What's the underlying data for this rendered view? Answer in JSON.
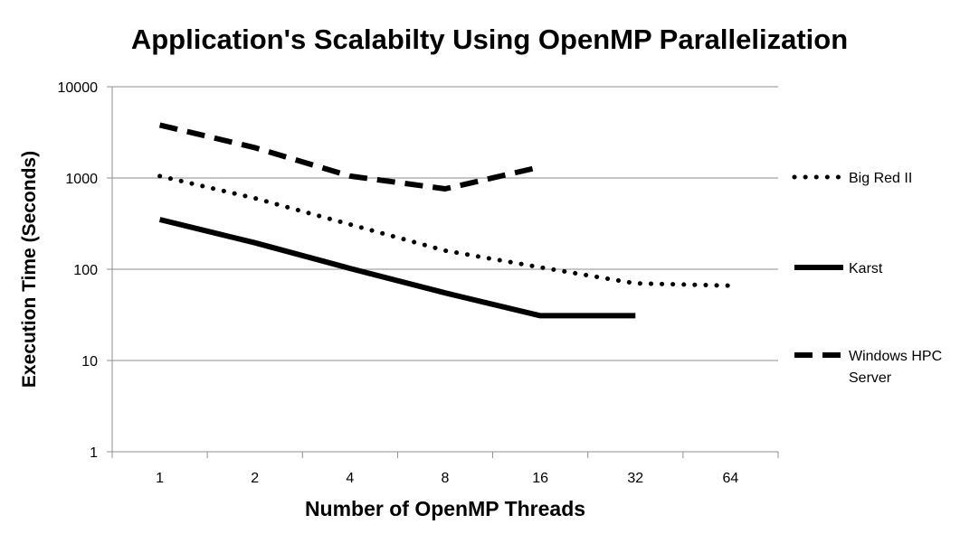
{
  "chart_data": {
    "type": "line",
    "title": "Application's Scalabilty Using OpenMP Parallelization",
    "xlabel": "Number of OpenMP Threads",
    "ylabel": "Execution Time (Seconds)",
    "categories": [
      "1",
      "2",
      "4",
      "8",
      "16",
      "32",
      "64"
    ],
    "y_scale": "log",
    "ylim": [
      1,
      10000
    ],
    "y_ticks": [
      "1",
      "10",
      "100",
      "1000",
      "10000"
    ],
    "grid": "horizontal",
    "legend_position": "right",
    "series": [
      {
        "name": "Big Red II",
        "style": "dotted",
        "color": "#000000",
        "values": [
          1050,
          600,
          310,
          160,
          105,
          70,
          66
        ]
      },
      {
        "name": "Karst",
        "style": "solid",
        "color": "#000000",
        "values": [
          350,
          195,
          102,
          55,
          31,
          31,
          null
        ]
      },
      {
        "name": "Windows HPC Server",
        "style": "dashed",
        "color": "#000000",
        "values": [
          3800,
          2150,
          1050,
          760,
          1320,
          null,
          null
        ]
      }
    ]
  }
}
